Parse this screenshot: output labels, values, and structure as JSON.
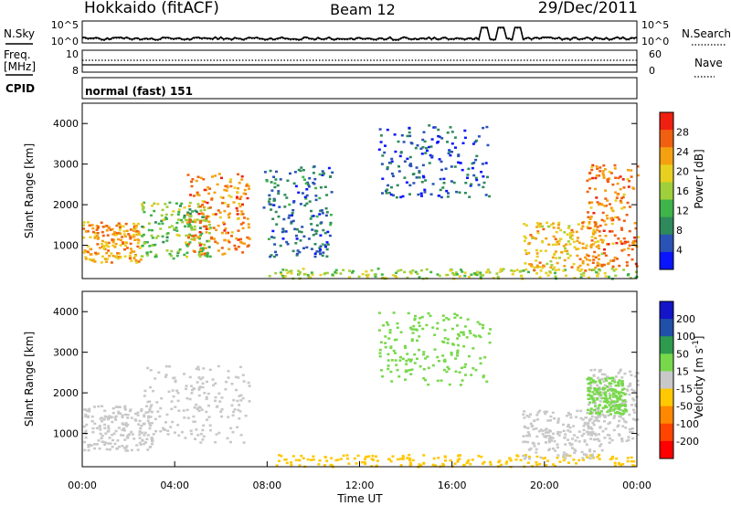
{
  "header": {
    "title": "Hokkaido (fitACF)",
    "beam": "Beam 12",
    "date": "29/Dec/2011"
  },
  "top_panels": {
    "nsky_label": "N.Sky",
    "nsearch_label": "N.Search",
    "left_ticks": [
      "10^5",
      "10^0"
    ],
    "right_ticks": [
      "10^5",
      "10^0"
    ],
    "freq_label": "Freq.",
    "freq_unit": "[MHz]",
    "freq_ticks": [
      "10",
      "8"
    ],
    "nave_label": "Nave",
    "nave_ticks": [
      "60",
      "0"
    ],
    "cpid_label": "CPID",
    "cpid_value": "normal (fast) 151"
  },
  "colors": {
    "power_scale": [
      "#0a14ff",
      "#2a53b5",
      "#2e8a5a",
      "#3fb44a",
      "#9fcf3a",
      "#e8d020",
      "#f5a010",
      "#f06010",
      "#f02010"
    ],
    "velocity_scale": [
      "#ff0000",
      "#ff4400",
      "#ff8800",
      "#ffc800",
      "#c8c8c8",
      "#78d84c",
      "#2e9a4e",
      "#2050a8",
      "#1414c8"
    ],
    "ground_scatter": "#c8c8c8"
  },
  "chart_data": [
    {
      "type": "heatmap",
      "name": "power",
      "ylabel": "Slant Range [km]",
      "y_ticks": [
        "4000",
        "3000",
        "2000",
        "1000"
      ],
      "colorbar_label": "Power [dB]",
      "colorbar_ticks": [
        "28",
        "24",
        "20",
        "16",
        "12",
        "8",
        "4"
      ],
      "x_range": [
        "00:00",
        "24:00"
      ],
      "y_range": [
        180,
        4500
      ],
      "features": [
        {
          "t": [
            0.0,
            2.5
          ],
          "r": [
            600,
            1600
          ],
          "level": 24
        },
        {
          "t": [
            2.5,
            5.5
          ],
          "r": [
            700,
            2100
          ],
          "level": 14
        },
        {
          "t": [
            4.5,
            7.2
          ],
          "r": [
            800,
            2800
          ],
          "level": 26
        },
        {
          "t": [
            7.8,
            10.8
          ],
          "r": [
            700,
            3000
          ],
          "level": 6
        },
        {
          "t": [
            8.0,
            24.0
          ],
          "r": [
            200,
            450
          ],
          "level": 16
        },
        {
          "t": [
            12.8,
            17.6
          ],
          "r": [
            2200,
            4000
          ],
          "level": 4
        },
        {
          "t": [
            19.0,
            22.5
          ],
          "r": [
            400,
            1600
          ],
          "level": 22
        },
        {
          "t": [
            21.8,
            24.0
          ],
          "r": [
            500,
            3000
          ],
          "level": 26
        }
      ]
    },
    {
      "type": "heatmap",
      "name": "velocity",
      "ylabel": "Slant Range [km]",
      "y_ticks": [
        "4000",
        "3000",
        "2000",
        "1000"
      ],
      "colorbar_label": "Velocity [m s-1]",
      "colorbar_ticks": [
        "200",
        "100",
        "50",
        "15",
        "-15",
        "-50",
        "-100",
        "-200"
      ],
      "x_ticks": [
        "00:00",
        "04:00",
        "08:00",
        "12:00",
        "16:00",
        "20:00",
        "00:00"
      ],
      "xlabel": "Time UT",
      "x_range": [
        "00:00",
        "24:00"
      ],
      "y_range": [
        180,
        4500
      ],
      "features": [
        {
          "t": [
            0.0,
            3.0
          ],
          "r": [
            600,
            1700
          ],
          "v": 0,
          "gs": true
        },
        {
          "t": [
            2.5,
            7.2
          ],
          "r": [
            800,
            2700
          ],
          "v": 0,
          "gs": true
        },
        {
          "t": [
            8.0,
            24.0
          ],
          "r": [
            200,
            500
          ],
          "v": -40
        },
        {
          "t": [
            12.8,
            17.6
          ],
          "r": [
            2200,
            4000
          ],
          "v": 40
        },
        {
          "t": [
            19.0,
            22.5
          ],
          "r": [
            400,
            1600
          ],
          "v": 0,
          "gs": true
        },
        {
          "t": [
            21.8,
            24.0
          ],
          "r": [
            800,
            2600
          ],
          "v": 0,
          "gs": true
        },
        {
          "t": [
            21.8,
            23.5
          ],
          "r": [
            1500,
            2400
          ],
          "v": 60
        }
      ]
    }
  ]
}
